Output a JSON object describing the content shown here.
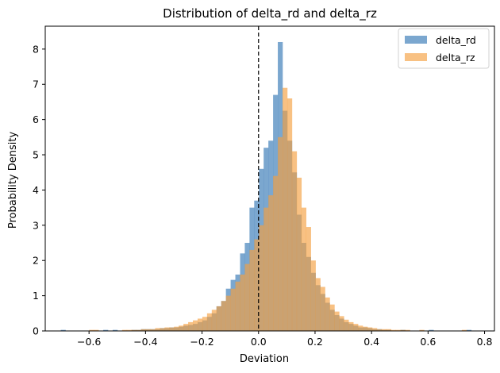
{
  "chart_data": {
    "type": "histogram",
    "title": "Distribution of delta_rd and delta_rz",
    "xlabel": "Deviation",
    "ylabel": "Probability Density",
    "xlim": [
      -0.755,
      0.835
    ],
    "ylim": [
      0,
      8.65
    ],
    "xticks": [
      -0.6,
      -0.4,
      -0.2,
      0.0,
      0.2,
      0.4,
      0.6,
      0.8
    ],
    "xtick_labels": [
      "−0.6",
      "−0.4",
      "−0.2",
      "0.0",
      "0.2",
      "0.4",
      "0.6",
      "0.8"
    ],
    "yticks": [
      0,
      1,
      2,
      3,
      4,
      5,
      6,
      7,
      8
    ],
    "ytick_labels": [
      "0",
      "1",
      "2",
      "3",
      "4",
      "5",
      "6",
      "7",
      "8"
    ],
    "reference_line": {
      "x": 0.0,
      "style": "dashed",
      "color": "#000000"
    },
    "legend_position": "top-right",
    "series": [
      {
        "name": "delta_rd",
        "color": "#4f8abf",
        "opacity": 0.75,
        "bin_start": -0.7,
        "bin_width": 0.0167,
        "values": [
          0.03,
          0.0,
          0.0,
          0.0,
          0.0,
          0.0,
          0.0,
          0.0,
          0.0,
          0.03,
          0.0,
          0.03,
          0.0,
          0.0,
          0.0,
          0.03,
          0.03,
          0.05,
          0.05,
          0.05,
          0.05,
          0.08,
          0.08,
          0.1,
          0.1,
          0.12,
          0.15,
          0.17,
          0.2,
          0.25,
          0.3,
          0.4,
          0.5,
          0.7,
          0.85,
          1.2,
          1.45,
          1.6,
          2.2,
          2.5,
          3.5,
          3.7,
          4.6,
          5.2,
          5.4,
          6.7,
          8.2,
          6.25,
          5.4,
          4.5,
          3.3,
          2.5,
          2.1,
          1.65,
          1.3,
          1.05,
          0.8,
          0.6,
          0.45,
          0.35,
          0.25,
          0.2,
          0.15,
          0.1,
          0.1,
          0.08,
          0.05,
          0.05,
          0.03,
          0.03,
          0.0,
          0.0,
          0.03,
          0.0,
          0.0,
          0.0,
          0.0,
          0.0,
          0.03,
          0.0,
          0.0,
          0.0,
          0.0,
          0.0,
          0.0,
          0.0,
          0.03
        ]
      },
      {
        "name": "delta_rz",
        "color": "#f5a040",
        "opacity": 0.65,
        "bin_start": -0.7,
        "bin_width": 0.0167,
        "values": [
          0.0,
          0.0,
          0.0,
          0.0,
          0.0,
          0.0,
          0.03,
          0.03,
          0.0,
          0.0,
          0.0,
          0.0,
          0.0,
          0.03,
          0.03,
          0.03,
          0.03,
          0.05,
          0.05,
          0.05,
          0.08,
          0.08,
          0.1,
          0.1,
          0.12,
          0.15,
          0.2,
          0.25,
          0.3,
          0.35,
          0.4,
          0.5,
          0.6,
          0.7,
          0.85,
          1.0,
          1.2,
          1.4,
          1.6,
          1.9,
          2.3,
          2.6,
          3.0,
          3.5,
          3.85,
          4.4,
          5.5,
          6.9,
          6.6,
          5.1,
          4.35,
          3.5,
          2.95,
          2.0,
          1.5,
          1.25,
          0.95,
          0.75,
          0.55,
          0.42,
          0.32,
          0.25,
          0.2,
          0.15,
          0.12,
          0.1,
          0.08,
          0.05,
          0.05,
          0.05,
          0.03,
          0.03,
          0.03,
          0.03,
          0.0,
          0.0,
          0.03,
          0.0,
          0.0,
          0.0,
          0.0,
          0.0,
          0.0,
          0.0,
          0.0,
          0.03,
          0.0,
          0.0,
          0.0,
          0.0,
          0.0,
          0.0
        ]
      }
    ]
  }
}
